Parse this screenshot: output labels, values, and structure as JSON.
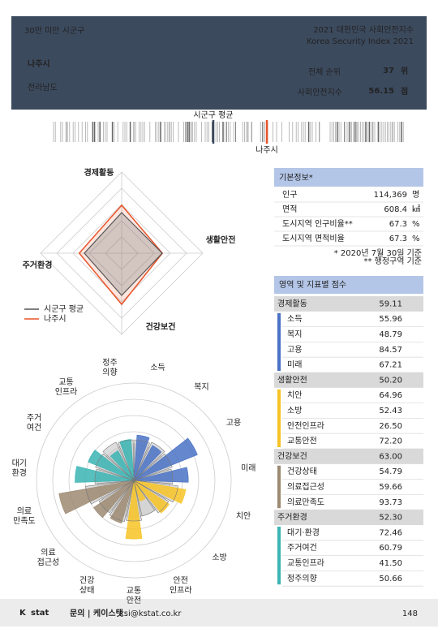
{
  "header": {
    "group": "30만 미만 시군구",
    "title": "2021 대한민국 사회안전지수",
    "subtitle": "Korea Security Index 2021",
    "city": "나주시",
    "province": "전라남도",
    "rank_label": "전체 순위",
    "rank": 37,
    "rank_unit": "위",
    "index_label": "사회안전지수",
    "index": 56.15,
    "index_unit": "점"
  },
  "strip": {
    "avg_label": "시군구 평균",
    "city_label": "나주시"
  },
  "radar": {
    "type": "radar",
    "categories": [
      "경제활동",
      "생활안전",
      "건강보건",
      "주거환경"
    ],
    "rlim": [
      0,
      100
    ],
    "series": [
      {
        "name": "시군구 평균",
        "color": "#555555",
        "values": [
          50,
          50,
          52,
          46
        ]
      },
      {
        "name": "나주시",
        "color": "#e8542a"
      }
    ]
  },
  "info": {
    "title": "기본정보*",
    "rows": [
      [
        "인구",
        "114,369",
        "명"
      ],
      [
        "면적",
        "608.4",
        "㎢"
      ],
      [
        "도시지역 인구비율**",
        "67.3",
        "%"
      ],
      [
        "도시지역 면적비율",
        "67.3",
        "%"
      ]
    ],
    "notes": [
      "* 2020년 7월 30일 기준",
      "** 행정구역 기준"
    ]
  },
  "scores": {
    "title": "영역 및 지표별 점수",
    "domains": [
      {
        "name": "경제활동",
        "score": 59.11,
        "color": "#4a72c4",
        "items": [
          {
            "name": "소득",
            "score": 55.96
          },
          {
            "name": "복지",
            "score": 48.79
          },
          {
            "name": "고용",
            "score": 84.57
          },
          {
            "name": "미래",
            "score": 67.21
          }
        ]
      },
      {
        "name": "생활안전",
        "score": 50.2,
        "label": "50.20",
        "color": "#f7c325",
        "items": [
          {
            "name": "치안",
            "score": 64.96
          },
          {
            "name": "소방",
            "score": 52.43
          },
          {
            "name": "안전인프라",
            "score": 26.5,
            "label": "26.50"
          },
          {
            "name": "교통안전",
            "score": 72.2,
            "label": "72.20"
          }
        ]
      },
      {
        "name": "건강보건",
        "score": 63,
        "label": "63.00",
        "color": "#9c8a72",
        "items": [
          {
            "name": "건강상태",
            "score": 54.79
          },
          {
            "name": "의료접근성",
            "score": 59.66
          },
          {
            "name": "의료만족도",
            "score": 93.73
          }
        ]
      },
      {
        "name": "주거환경",
        "score": 52.3,
        "label": "52.30",
        "color": "#3bb4b4",
        "items": [
          {
            "name": "대기·환경",
            "score": 72.46
          },
          {
            "name": "주거여건",
            "score": 60.79
          },
          {
            "name": "교통인프라",
            "score": 41.5,
            "label": "41.50"
          },
          {
            "name": "정주의향",
            "score": 50.66
          }
        ]
      }
    ]
  },
  "rose": {
    "type": "rose",
    "rlim": [
      0,
      120
    ],
    "labels": [
      [
        "소득"
      ],
      [
        "복지"
      ],
      [
        "고용"
      ],
      [
        "미래"
      ],
      [
        "치안"
      ],
      [
        "소방"
      ],
      [
        "안전",
        "인프라"
      ],
      [
        "교통",
        "안전"
      ],
      [
        "건강",
        "상태"
      ],
      [
        "의료",
        "접근성"
      ],
      [
        "의료",
        "만족도"
      ],
      [
        "대기",
        "환경"
      ],
      [
        "주거",
        "여건"
      ],
      [
        "교통",
        "인프라"
      ],
      [
        "정주",
        "의향"
      ]
    ],
    "average": [
      50,
      52,
      50,
      48,
      55,
      50,
      45,
      50,
      52,
      50,
      60,
      48,
      50,
      52,
      50
    ]
  },
  "footer": {
    "logo_k": "K",
    "logo_stat": "stat",
    "contact": "문의 | 케이스탯",
    "email": "ksi@kstat.co.kr",
    "page": "148"
  }
}
